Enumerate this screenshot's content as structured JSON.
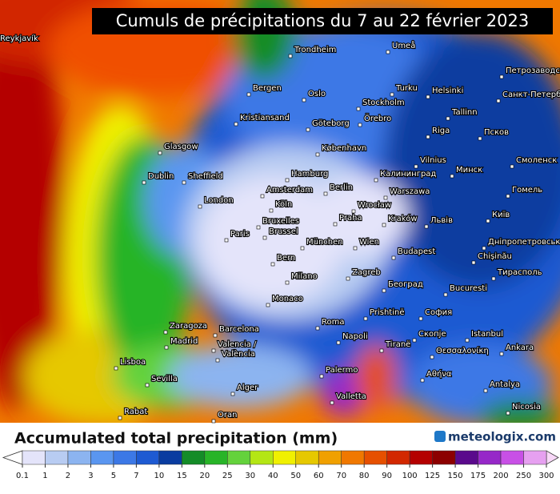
{
  "header": {
    "title": "Cumuls de précipitations du 7 au 22 février 2023"
  },
  "map": {
    "cities": [
      "Reykjavík",
      "Trondheim",
      "Umeå",
      "Петрозаводск",
      "Bergen",
      "Oslo",
      "Turku",
      "Helsinki",
      "Санкт-Петербург",
      "Kristiansand",
      "Stockholm",
      "Tallinn",
      "Göteborg",
      "Örebro",
      "Riga",
      "Псков",
      "Glasgow",
      "København",
      "Vilnius",
      "Минск",
      "Смоленск",
      "Dublin",
      "Sheffield",
      "Hamburg",
      "Калининград",
      "London",
      "Amsterdam",
      "Berlin",
      "Warszawa",
      "Гомель",
      "Köln",
      "Wrocław",
      "Київ",
      "Bruxelles",
      "Brussel",
      "Praha",
      "Kraków",
      "Львів",
      "Paris",
      "München",
      "Wien",
      "Дніпропетровськ",
      "Budapest",
      "Chișinău",
      "Bern",
      "Zagreb",
      "Milano",
      "Тирасполь",
      "Београд",
      "Bucuresti",
      "Monaco",
      "Prishtinë",
      "София",
      "Roma",
      "Zaragoza",
      "Barcelona",
      "Napoli",
      "Istanbul",
      "Madrid",
      "Valencia /",
      "València",
      "Tiranë",
      "Скопје",
      "Ankara",
      "Θεσσαλονίκη",
      "Lisboa",
      "Αθήνα",
      "Palermo",
      "Sevilla",
      "Alger",
      "Valletta",
      "Antalya",
      "Rabat",
      "Oran",
      "Nicosia"
    ]
  },
  "legend": {
    "title": "Accumulated total precipitation (mm)",
    "brand": "meteologix.com",
    "ticks": [
      0.1,
      1,
      2,
      3,
      5,
      7,
      10,
      15,
      20,
      25,
      30,
      40,
      50,
      60,
      70,
      80,
      90,
      100,
      125,
      150,
      175,
      200,
      250,
      300
    ],
    "colors": [
      "#e4e4fa",
      "#b8ccf2",
      "#8cb4f0",
      "#5a96f0",
      "#3c78e6",
      "#1e5ad2",
      "#0a3ca0",
      "#148c28",
      "#28b428",
      "#64d23c",
      "#b4e614",
      "#f0f000",
      "#e6c800",
      "#f0a000",
      "#f07800",
      "#e65000",
      "#d22800",
      "#b40000",
      "#8c0000",
      "#5a0a8c",
      "#9628c8",
      "#c850e6",
      "#e6a0f0"
    ],
    "under_color": "#ffffff",
    "over_color": "#f8d8f8"
  }
}
